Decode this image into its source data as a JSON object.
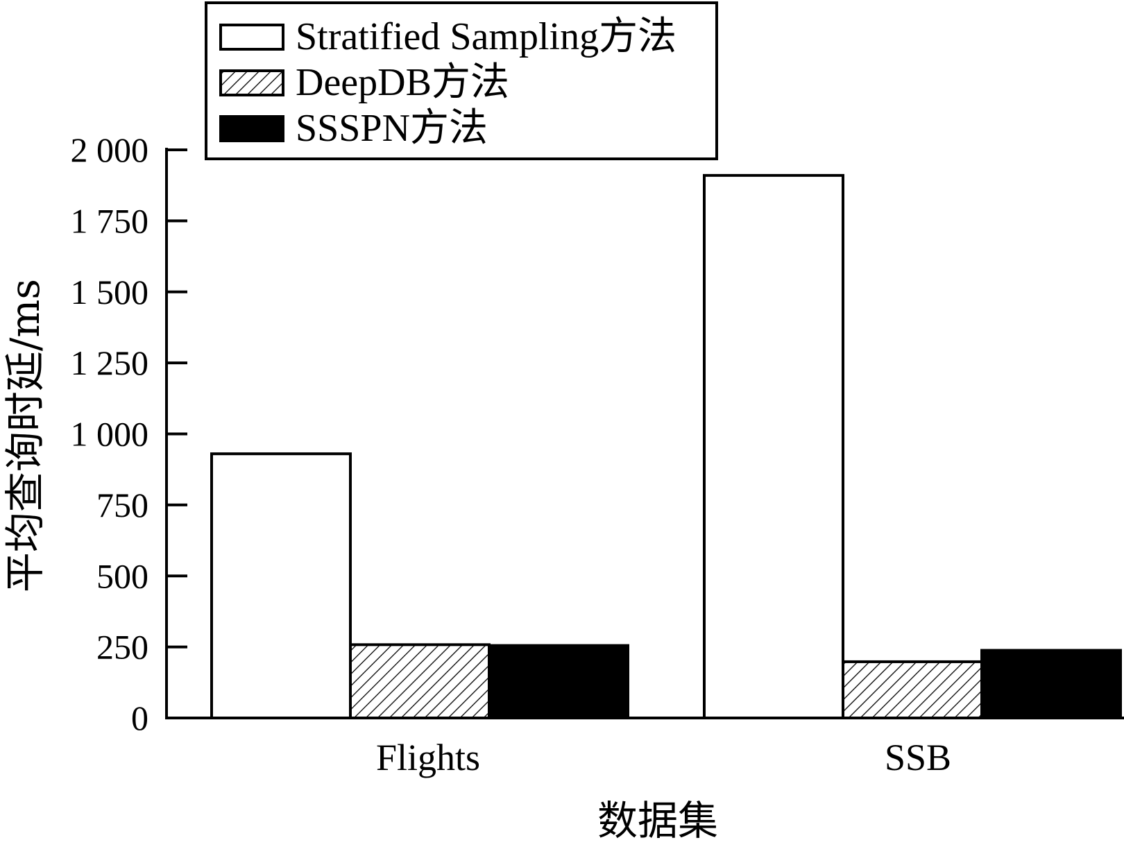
{
  "chart_data": {
    "type": "bar",
    "categories": [
      "Flights",
      "SSB"
    ],
    "series": [
      {
        "name": "Stratified Sampling方法",
        "values": [
          930,
          1910
        ],
        "style": "white"
      },
      {
        "name": "DeepDB方法",
        "values": [
          258,
          198
        ],
        "style": "hatched"
      },
      {
        "name": "SSSPN方法",
        "values": [
          255,
          238
        ],
        "style": "black"
      }
    ],
    "xlabel": "数据集",
    "ylabel": "平均查询时延/ms",
    "ylim": [
      0,
      2000
    ],
    "yticks": [
      0,
      250,
      500,
      750,
      1000,
      1250,
      1500,
      1750,
      2000
    ],
    "ytick_labels": [
      "0",
      "250",
      "500",
      "750",
      "1 000",
      "1 250",
      "1 500",
      "1 750",
      "2 000"
    ],
    "grid": false,
    "legend_position": "top-left",
    "colors": {
      "bar_stroke": "#000000",
      "fill_white": "#ffffff",
      "fill_black": "#000000",
      "hatch": "#000000"
    }
  }
}
